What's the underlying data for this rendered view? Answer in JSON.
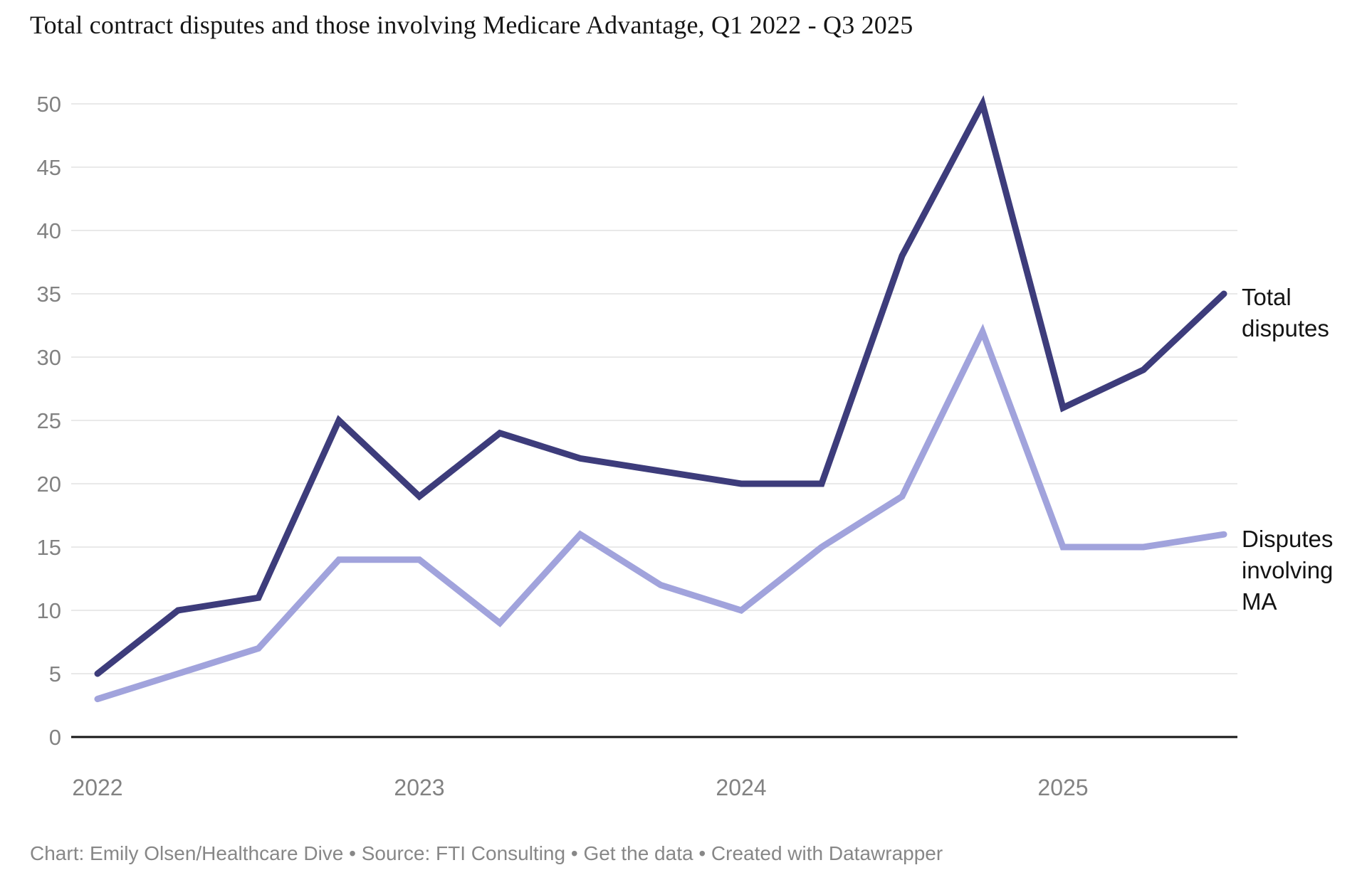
{
  "title": "Total contract disputes and those involving Medicare Advantage, Q1 2022 - Q3 2025",
  "footer": {
    "credit": "Chart: Emily Olsen/Healthcare Dive • Source: FTI Consulting • ",
    "link_label": "Get the data",
    "suffix": " • Created with Datawrapper"
  },
  "colors": {
    "total": "#3d3c7b",
    "ma": "#a1a3dc",
    "grid": "#e9e9e9",
    "axis": "#161616",
    "tick_label": "#828282"
  },
  "chart_data": {
    "type": "line",
    "x": [
      "Q1 2022",
      "Q2 2022",
      "Q3 2022",
      "Q4 2022",
      "Q1 2023",
      "Q2 2023",
      "Q3 2023",
      "Q4 2023",
      "Q1 2024",
      "Q2 2024",
      "Q3 2024",
      "Q4 2024",
      "Q1 2025",
      "Q2 2025",
      "Q3 2025"
    ],
    "series": [
      {
        "name": "Total disputes",
        "color_key": "total",
        "values": [
          5,
          10,
          11,
          25,
          19,
          24,
          22,
          21,
          20,
          20,
          38,
          50,
          26,
          29,
          35
        ]
      },
      {
        "name": "Disputes involving MA",
        "color_key": "ma",
        "values": [
          3,
          5,
          7,
          14,
          14,
          9,
          16,
          12,
          10,
          15,
          19,
          32,
          15,
          15,
          16
        ]
      }
    ],
    "title": "Total contract disputes and those involving Medicare Advantage, Q1 2022 - Q3 2025",
    "xlabel": "",
    "ylabel": "",
    "ylim": [
      0,
      50
    ],
    "yticks": [
      0,
      5,
      10,
      15,
      20,
      25,
      30,
      35,
      40,
      45,
      50
    ],
    "xticks": [
      {
        "i": 0,
        "label": "2022"
      },
      {
        "i": 4,
        "label": "2023"
      },
      {
        "i": 8,
        "label": "2024"
      },
      {
        "i": 12,
        "label": "2025"
      }
    ],
    "grid": "horizontal",
    "legend_position": "right-edge-direct-labels"
  }
}
